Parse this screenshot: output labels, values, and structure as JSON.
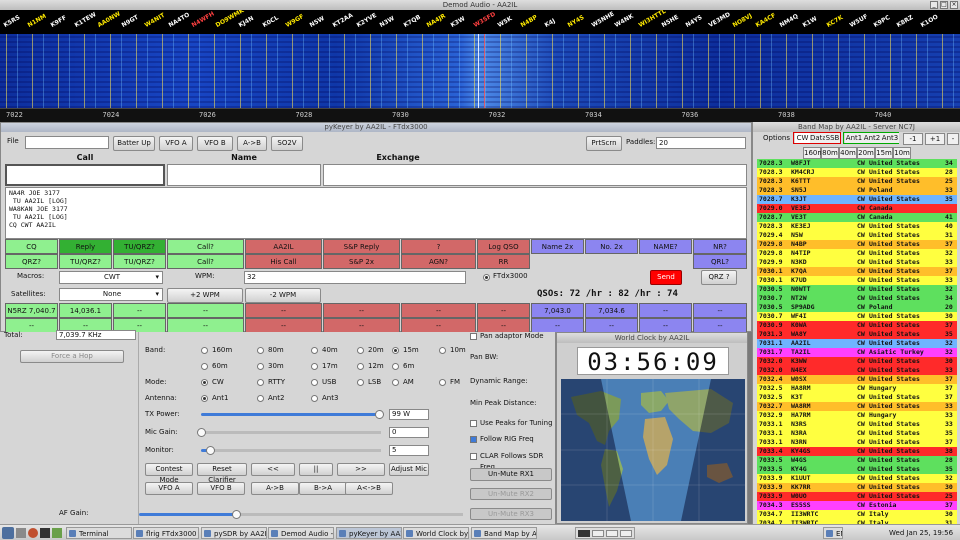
{
  "waterfall": {
    "title": "Demod Audio - AA2IL",
    "calls": [
      {
        "label": "K5RS",
        "color": "#ffffff"
      },
      {
        "label": "N1NM",
        "color": "#ffea00"
      },
      {
        "label": "K9FF",
        "color": "#ffffff"
      },
      {
        "label": "K1TEW",
        "color": "#ffffff"
      },
      {
        "label": "AA0NW",
        "color": "#ffea00"
      },
      {
        "label": "N9GT",
        "color": "#ffffff"
      },
      {
        "label": "W4NIT",
        "color": "#ffea00"
      },
      {
        "label": "NA4TO",
        "color": "#ffffff"
      },
      {
        "label": "N4WFH",
        "color": "#ff4040"
      },
      {
        "label": "DO9WMK",
        "color": "#ffea00"
      },
      {
        "label": "KJ4N",
        "color": "#ffffff"
      },
      {
        "label": "K0CL",
        "color": "#ffffff"
      },
      {
        "label": "W9GF",
        "color": "#ffea00"
      },
      {
        "label": "N5W",
        "color": "#ffffff"
      },
      {
        "label": "KT2AA",
        "color": "#ffffff"
      },
      {
        "label": "K2YVE",
        "color": "#ffffff"
      },
      {
        "label": "N3W",
        "color": "#ffffff"
      },
      {
        "label": "K7QB",
        "color": "#ffffff"
      },
      {
        "label": "NA4JR",
        "color": "#ffea00"
      },
      {
        "label": "K3W",
        "color": "#ffffff"
      },
      {
        "label": "W3SFD",
        "color": "#ff4040"
      },
      {
        "label": "W5K",
        "color": "#ffffff"
      },
      {
        "label": "N4BP",
        "color": "#ffea00"
      },
      {
        "label": "K4J",
        "color": "#ffffff"
      },
      {
        "label": "NY4S",
        "color": "#ffea00"
      },
      {
        "label": "W5NHE",
        "color": "#ffffff"
      },
      {
        "label": "W4NK",
        "color": "#ffffff"
      },
      {
        "label": "WI3HTTL",
        "color": "#ffea00"
      },
      {
        "label": "N5HE",
        "color": "#ffffff"
      },
      {
        "label": "N4YS",
        "color": "#ffffff"
      },
      {
        "label": "VE3MD",
        "color": "#ffffff"
      },
      {
        "label": "NO8VJ",
        "color": "#ffea00"
      },
      {
        "label": "KA4CF",
        "color": "#ffea00"
      },
      {
        "label": "NM4Q",
        "color": "#ffffff"
      },
      {
        "label": "K1W",
        "color": "#ffffff"
      },
      {
        "label": "KC7K",
        "color": "#ffea00"
      },
      {
        "label": "W5UF",
        "color": "#ffffff"
      },
      {
        "label": "K9PC",
        "color": "#ffffff"
      },
      {
        "label": "K8RZ",
        "color": "#ffffff"
      },
      {
        "label": "K1OO",
        "color": "#ffffff"
      }
    ],
    "scale": [
      "7022",
      "7024",
      "7026",
      "7028",
      "7030",
      "7032",
      "7034",
      "7036",
      "7038",
      "7040"
    ]
  },
  "keyer": {
    "title": "pyKeyer by AA2IL - FTdx3000",
    "menu_file": "File",
    "top_buttons": [
      "Batter Up",
      "VFO A",
      "VFO B",
      "A->B",
      "SO2V"
    ],
    "prtscrn": "PrtScrn",
    "paddles_label": "Paddles:",
    "paddles_value": "20",
    "headers": {
      "call": "Call",
      "name": "Name",
      "exchange": "Exchange"
    },
    "log_lines": [
      "NA4R JOE 3177",
      " TU AA2IL [LOG]",
      "WA8KAN JOE 3177",
      " TU AA2IL [LOG]",
      "CQ CWT AA2IL"
    ],
    "row1": [
      "CQ",
      "Reply",
      "TU/QRZ?",
      "Call?",
      "AA2IL",
      "S&P Reply",
      "?",
      "Log QSO",
      "Name 2x",
      "No. 2x",
      "NAME?",
      "NR?"
    ],
    "row2": [
      "QRZ?",
      "TU/QRZ?",
      "TU/QRZ?",
      "Call?",
      "His Call",
      "S&P 2x",
      "AGN?",
      "RR",
      "",
      "",
      "",
      "QRL?"
    ],
    "macros_label": "Macros:",
    "macros_value": "CWT",
    "wpm_label": "WPM:",
    "wpm_value": "32",
    "radio_label": "FTdx3000",
    "send": "Send",
    "qrz": "QRZ ?",
    "sats_label": "Satellites:",
    "sats_value": "None",
    "plus_wpm": "+2 WPM",
    "minus_wpm": "-2 WPM",
    "qso_rate": "QSOs:  72 /hr :  82 /hr : 74",
    "row4": [
      "N5RZ 7,040.7",
      "14,036.1",
      "--",
      "--",
      "--",
      "--",
      "--",
      "--",
      "7,043.0",
      "7,034.6",
      "--",
      "--"
    ],
    "row5": [
      "--",
      "--",
      "--",
      "--",
      "--",
      "--",
      "--",
      "--",
      "--",
      "--",
      "--",
      "--"
    ]
  },
  "sdr": {
    "total_label": "Total:",
    "total_value": "7,039.7 KHz",
    "force_hop": "Force a Hop",
    "band_label": "Band:",
    "bands": [
      "160m",
      "80m",
      "40m",
      "20m",
      "15m",
      "10m",
      "60m",
      "30m",
      "17m",
      "12m",
      "6m"
    ],
    "band_selected": "15m",
    "mode_label": "Mode:",
    "modes": [
      "CW",
      "RTTY",
      "USB",
      "LSB",
      "AM",
      "FM"
    ],
    "mode_selected": "CW",
    "antenna_label": "Antenna:",
    "antennas": [
      "Ant1",
      "Ant2",
      "Ant3"
    ],
    "antenna_selected": "Ant1",
    "tx_power_label": "TX Power:",
    "tx_power_value": "99 W",
    "tx_power_level": 0.99,
    "mic_gain_label": "Mic Gain:",
    "mic_gain_value": "0",
    "mic_gain_level": 0.0,
    "monitor_label": "Monitor:",
    "monitor_value": "5",
    "monitor_level": 0.05,
    "buttons_row1": [
      "Contest Mode",
      "Reset Clarifier",
      "<<",
      "||",
      ">>",
      "Adjust Mic"
    ],
    "buttons_row2": [
      "VFO A",
      "VFO B",
      "A->B",
      "B->A",
      "A<->B"
    ],
    "af_gain_label": "AF Gain:",
    "af_gain_level": 0.3,
    "right": {
      "adaptor": "Pan adaptor Mode",
      "pan_bw": "Pan BW:",
      "dyn_range": "Dynamic Range:",
      "min_peak": "Min Peak Distance:",
      "use_peaks": "Use Peaks for Tuning",
      "follow_rig": "Follow RIG Freq",
      "clar_follows": "CLAR Follows SDR Freq",
      "unmute1": "Un-Mute RX1",
      "unmute2": "Un-Mute RX2",
      "unmute3": "Un-Mute RX3"
    }
  },
  "clock": {
    "title": "World Clock by AA2IL",
    "time": "03:56:09"
  },
  "bandmap": {
    "title": "Band Map by AA2IL - Server NC7J",
    "options": "Options",
    "modes": [
      "CW",
      "Data",
      "SSB"
    ],
    "ants": [
      "Ant1",
      "Ant2",
      "Ant3"
    ],
    "minus": "-1",
    "plus": "+1",
    "minus2": "-",
    "bands": [
      "160m",
      "80m",
      "40m",
      "20m",
      "15m",
      "10m"
    ],
    "rows": [
      {
        "f": "7028.3",
        "c": "W8FJT",
        "m": "CW",
        "d": "United States",
        "n": "34",
        "bg": "#5ee05e"
      },
      {
        "f": "7028.3",
        "c": "KM4CRJ",
        "m": "CW",
        "d": "United States",
        "n": "28",
        "bg": "#ffff40"
      },
      {
        "f": "7028.3",
        "c": "K6TTT",
        "m": "CW",
        "d": "United States",
        "n": "25",
        "bg": "#ffbe2a"
      },
      {
        "f": "7028.3",
        "c": "SN5J",
        "m": "CW",
        "d": "Poland",
        "n": "33",
        "bg": "#ffbe2a"
      },
      {
        "f": "7028.7",
        "c": "K3JT",
        "m": "CW",
        "d": "United States",
        "n": "35",
        "bg": "#6fb4ff"
      },
      {
        "f": "7029.0",
        "c": "VE3EJ",
        "m": "CW",
        "d": "Canada",
        "n": "",
        "bg": "#ff2a2a"
      },
      {
        "f": "7028.7",
        "c": "VE3T",
        "m": "CW",
        "d": "Canada",
        "n": "41",
        "bg": "#5ee05e"
      },
      {
        "f": "7028.3",
        "c": "KE3EJ",
        "m": "CW",
        "d": "United States",
        "n": "40",
        "bg": "#ffff40"
      },
      {
        "f": "7029.4",
        "c": "N5W",
        "m": "CW",
        "d": "United States",
        "n": "31",
        "bg": "#ffff40"
      },
      {
        "f": "7029.8",
        "c": "N4BP",
        "m": "CW",
        "d": "United States",
        "n": "37",
        "bg": "#ffbe2a"
      },
      {
        "f": "7029.8",
        "c": "N4TIP",
        "m": "CW",
        "d": "United States",
        "n": "32",
        "bg": "#ffff40"
      },
      {
        "f": "7029.9",
        "c": "N3KD",
        "m": "CW",
        "d": "United States",
        "n": "33",
        "bg": "#ffff40"
      },
      {
        "f": "7030.1",
        "c": "K7QA",
        "m": "CW",
        "d": "United States",
        "n": "37",
        "bg": "#ffbe2a"
      },
      {
        "f": "7030.1",
        "c": "K7UD",
        "m": "CW",
        "d": "United States",
        "n": "33",
        "bg": "#ffff40"
      },
      {
        "f": "7030.5",
        "c": "N0WTT",
        "m": "CW",
        "d": "United States",
        "n": "32",
        "bg": "#5ee05e"
      },
      {
        "f": "7030.7",
        "c": "NT2W",
        "m": "CW",
        "d": "United States",
        "n": "34",
        "bg": "#5ee05e"
      },
      {
        "f": "7030.5",
        "c": "SP9ADG",
        "m": "CW",
        "d": "Poland",
        "n": "20",
        "bg": "#5ee05e"
      },
      {
        "f": "7030.7",
        "c": "WF4I",
        "m": "CW",
        "d": "United States",
        "n": "30",
        "bg": "#ffff40"
      },
      {
        "f": "7030.9",
        "c": "K0WA",
        "m": "CW",
        "d": "United States",
        "n": "37",
        "bg": "#ff2a2a"
      },
      {
        "f": "7031.3",
        "c": "WA8Y",
        "m": "CW",
        "d": "United States",
        "n": "35",
        "bg": "#ff2a2a"
      },
      {
        "f": "7031.1",
        "c": "AA2IL",
        "m": "CW",
        "d": "United States",
        "n": "32",
        "bg": "#6fb4ff"
      },
      {
        "f": "7031.7",
        "c": "TA2IL",
        "m": "CW",
        "d": "Asiatic Turkey",
        "n": "32",
        "bg": "#ff40ff"
      },
      {
        "f": "7032.0",
        "c": "K3WW",
        "m": "CW",
        "d": "United States",
        "n": "30",
        "bg": "#ff2a2a"
      },
      {
        "f": "7032.0",
        "c": "N4EX",
        "m": "CW",
        "d": "United States",
        "n": "33",
        "bg": "#ff2a2a"
      },
      {
        "f": "7032.4",
        "c": "W0SX",
        "m": "CW",
        "d": "United States",
        "n": "37",
        "bg": "#ffbe2a"
      },
      {
        "f": "7032.5",
        "c": "HA8RM",
        "m": "CW",
        "d": "Hungary",
        "n": "37",
        "bg": "#ffff40"
      },
      {
        "f": "7032.5",
        "c": "K3T",
        "m": "CW",
        "d": "United States",
        "n": "37",
        "bg": "#ffff40"
      },
      {
        "f": "7032.7",
        "c": "WA8RM",
        "m": "CW",
        "d": "United States",
        "n": "33",
        "bg": "#ffbe2a"
      },
      {
        "f": "7032.9",
        "c": "HA7RM",
        "m": "CW",
        "d": "Hungary",
        "n": "33",
        "bg": "#ffff40"
      },
      {
        "f": "7033.1",
        "c": "N3RS",
        "m": "CW",
        "d": "United States",
        "n": "33",
        "bg": "#ffff40"
      },
      {
        "f": "7033.1",
        "c": "N3RA",
        "m": "CW",
        "d": "United States",
        "n": "35",
        "bg": "#ffff40"
      },
      {
        "f": "7033.1",
        "c": "N3RN",
        "m": "CW",
        "d": "United States",
        "n": "37",
        "bg": "#ffff40"
      },
      {
        "f": "7033.4",
        "c": "KY4GS",
        "m": "CW",
        "d": "United States",
        "n": "38",
        "bg": "#ff2a2a"
      },
      {
        "f": "7033.5",
        "c": "W4GS",
        "m": "CW",
        "d": "United States",
        "n": "28",
        "bg": "#5ee05e"
      },
      {
        "f": "7033.5",
        "c": "KY4G",
        "m": "CW",
        "d": "United States",
        "n": "35",
        "bg": "#5ee05e"
      },
      {
        "f": "7033.9",
        "c": "K1UUT",
        "m": "CW",
        "d": "United States",
        "n": "32",
        "bg": "#ffff40"
      },
      {
        "f": "7033.9",
        "c": "KK7RR",
        "m": "CW",
        "d": "United States",
        "n": "30",
        "bg": "#ffbe2a"
      },
      {
        "f": "7033.9",
        "c": "W0UO",
        "m": "CW",
        "d": "United States",
        "n": "25",
        "bg": "#ff2a2a"
      },
      {
        "f": "7034.3",
        "c": "ES5SS",
        "m": "CW",
        "d": "Estonia",
        "n": "37",
        "bg": "#ff40ff"
      },
      {
        "f": "7034.7",
        "c": "II3WRTC",
        "m": "CW",
        "d": "Italy",
        "n": "30",
        "bg": "#ffff40"
      },
      {
        "f": "7034.7",
        "c": "II3WRTC",
        "m": "CW",
        "d": "Italy",
        "n": "31",
        "bg": "#ffff40"
      }
    ]
  },
  "taskbar": {
    "items": [
      "Terminal",
      "flrig FTdx3000",
      "pySDR by AA2IL",
      "Demod Audio - ...",
      "pyKeyer by AA2...",
      "World Clock by ...",
      "Band Map by AA2...",
      "EN"
    ],
    "clock": "Wed Jan 25, 19:56"
  }
}
